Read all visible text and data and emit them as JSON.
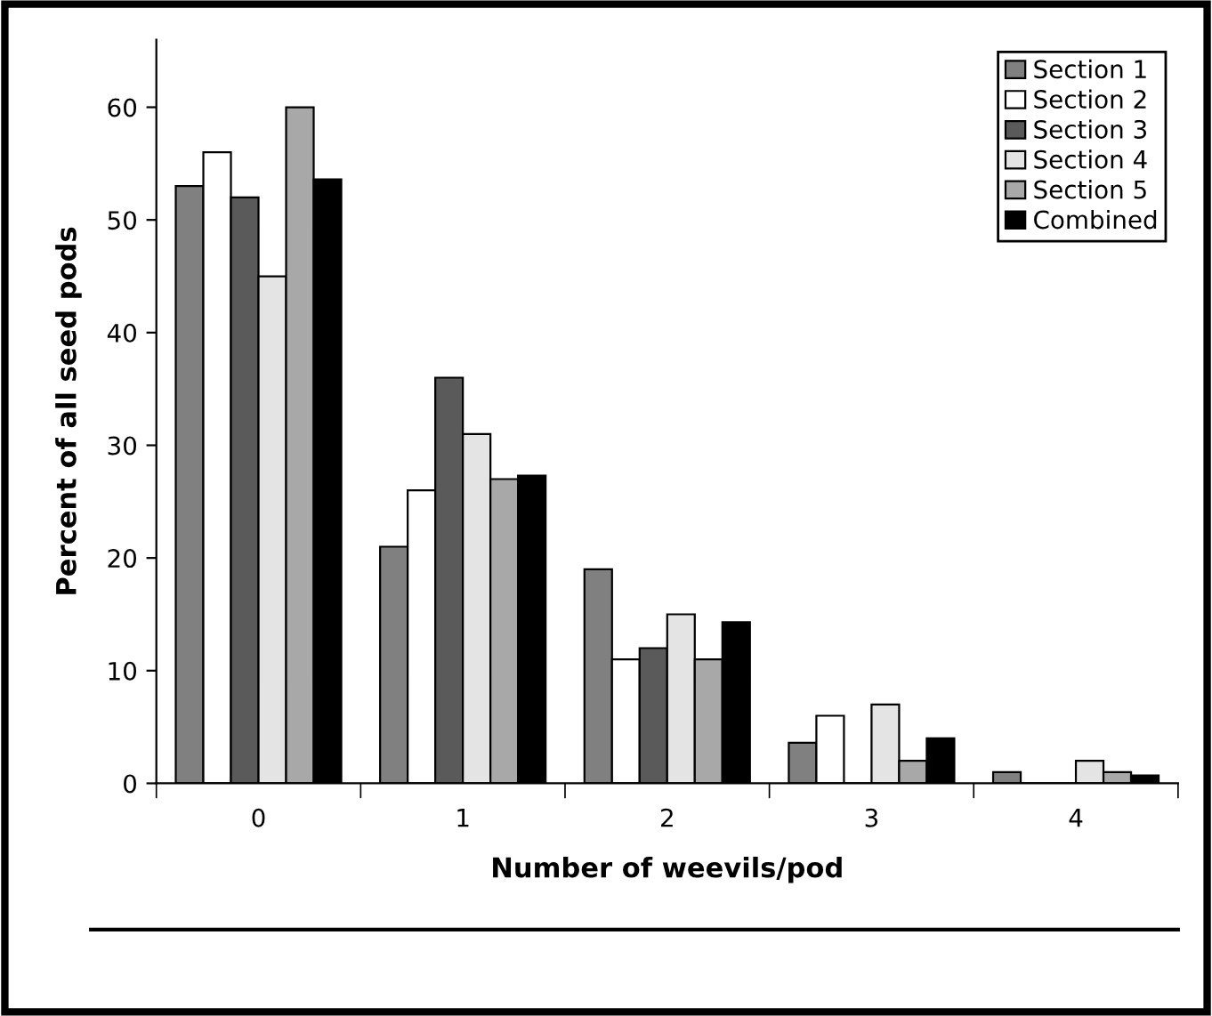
{
  "chart_data": {
    "type": "bar",
    "xlabel": "Number of weevils/pod",
    "ylabel": "Percent of all seed pods",
    "categories": [
      "0",
      "1",
      "2",
      "3",
      "4"
    ],
    "series": [
      {
        "name": "Section 1",
        "color": "#808080",
        "values": [
          53,
          21,
          19,
          3.6,
          1
        ]
      },
      {
        "name": "Section 2",
        "color": "#ffffff",
        "values": [
          56,
          26,
          11,
          6,
          0
        ]
      },
      {
        "name": "Section 3",
        "color": "#5a5a5a",
        "values": [
          52,
          36,
          12,
          0,
          0
        ]
      },
      {
        "name": "Section 4",
        "color": "#e4e4e4",
        "values": [
          45,
          31,
          15,
          7,
          2
        ]
      },
      {
        "name": "Section 5",
        "color": "#a8a8a8",
        "values": [
          60,
          27,
          11,
          2,
          1
        ]
      },
      {
        "name": "Combined",
        "color": "#000000",
        "values": [
          53.6,
          27.3,
          14.3,
          4,
          0.7
        ]
      }
    ],
    "ylim": [
      0,
      66
    ],
    "yticks": [
      0,
      10,
      20,
      30,
      40,
      50,
      60
    ],
    "grid": false,
    "legend": "top right"
  }
}
